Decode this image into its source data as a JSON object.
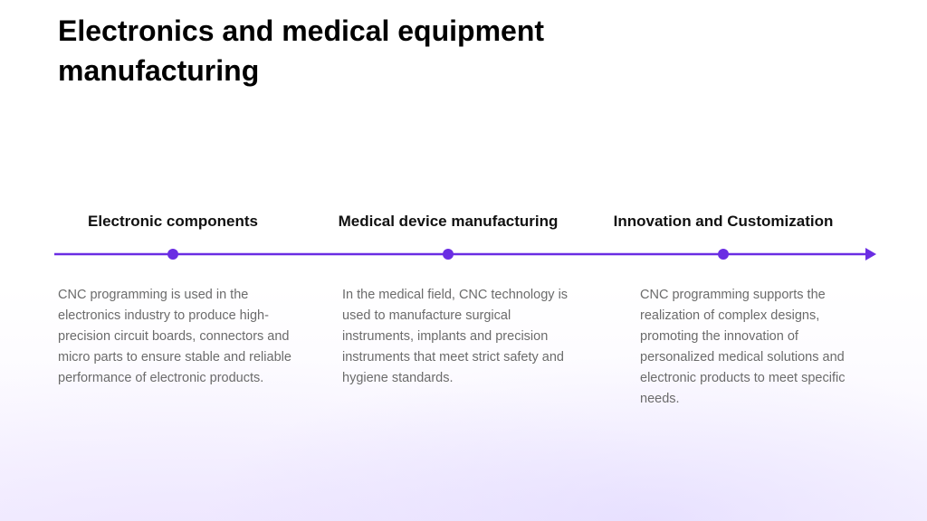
{
  "page": {
    "title": "Electronics and medical equipment manufacturing"
  },
  "colors": {
    "accent": "#6a2de3",
    "title": "#000000",
    "body_text": "#6b6b6b"
  },
  "timeline": {
    "milestones": [
      {
        "heading": "Electronic components",
        "text": "CNC programming is used in the electronics industry to produce high-precision circuit boards, connectors and micro parts to ensure stable and reliable performance of electronic products."
      },
      {
        "heading": "Medical device manufacturing",
        "text": "In the medical field, CNC technology is used to manufacture surgical instruments, implants and precision instruments that meet strict safety and hygiene standards."
      },
      {
        "heading": "Innovation and Customization",
        "text": "CNC programming supports the realization of complex designs, promoting the innovation of personalized medical solutions and electronic products to meet specific needs."
      }
    ]
  }
}
